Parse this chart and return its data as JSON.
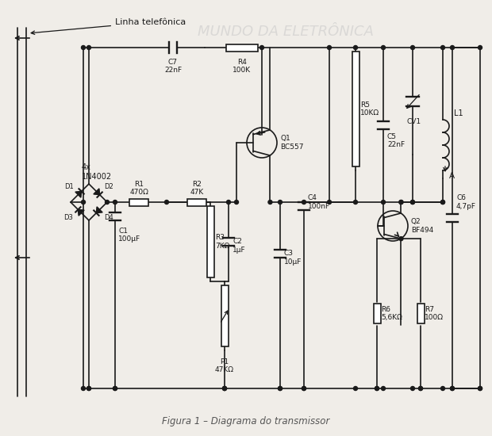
{
  "title": "Figura 1 – Diagrama do transmissor",
  "bg_color": "#f0ede8",
  "line_color": "#1a1a1a",
  "watermark": "MUNDO DA ELETRÔNICA",
  "components": {
    "C7_val": "22nF",
    "R4_val": "100K",
    "R5_label": "R5\n10KΩ",
    "C5_label": "C5\n22nF",
    "CV1_label": "CV1",
    "L1_label": "L1",
    "Q1_label": "Q1\nBC557",
    "Q2_label": "Q2\nBF494",
    "R1_label": "R1\n470Ω",
    "R2_label": "R2\n47K",
    "R3_label": "R3\n7KΩ",
    "C1_label": "C1\n100μF",
    "C2_label": "C2\n1μF",
    "C3_label": "C3\n10μF",
    "C4_label": "C4\n100nF",
    "C6_label": "C6\n4,7pF",
    "R6_label": "R6\n5,6KΩ",
    "R7_label": "R7\n100Ω",
    "P1_label": "P1\n47KΩ",
    "diode_label": "4x\n1N4002",
    "C7_label": "C7\n22nF",
    "R4_label": "R4\n100K",
    "linha_label": "Linha telefônica",
    "A_label": "A"
  }
}
